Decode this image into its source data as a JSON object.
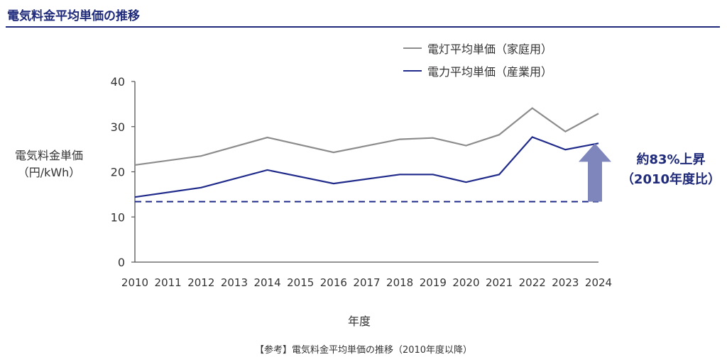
{
  "title": "電気料金平均単価の推移",
  "caption": "【参考】電気料金平均単価の推移（2010年度以降）",
  "annotation": {
    "line1": "約83%上昇",
    "line2": "（2010年度比）"
  },
  "colors": {
    "gray": "#8c8c8c",
    "navy": "#1f2a8a",
    "arrow": "#7f86bb",
    "title": "#1f2a7a"
  },
  "chart_data": {
    "type": "line",
    "title": "電気料金平均単価の推移",
    "xlabel": "年度",
    "ylabel_line1": "電気料金単価",
    "ylabel_line2": "（円/kWh）",
    "ylim": [
      0,
      40
    ],
    "yticks": [
      "0",
      "10",
      "20",
      "30",
      "40"
    ],
    "x": [
      "2010",
      "2011",
      "2012",
      "2013",
      "2014",
      "2015",
      "2016",
      "2017",
      "2018",
      "2019",
      "2020",
      "2021",
      "2022",
      "2023",
      "2024"
    ],
    "legend_position": "top-right",
    "series": [
      {
        "name": "電灯平均単価（家庭用）",
        "color": "#8c8c8c",
        "points": [
          [
            2010,
            21.5
          ],
          [
            2012,
            23.5
          ],
          [
            2014,
            27.6
          ],
          [
            2016,
            24.3
          ],
          [
            2018,
            27.2
          ],
          [
            2019,
            27.5
          ],
          [
            2020,
            25.8
          ],
          [
            2021,
            28.2
          ],
          [
            2022,
            34.1
          ],
          [
            2023,
            28.9
          ],
          [
            2024,
            32.9
          ]
        ]
      },
      {
        "name": "電力平均単価（産業用）",
        "color": "#1f2a8a",
        "points": [
          [
            2010,
            14.4
          ],
          [
            2012,
            16.5
          ],
          [
            2014,
            20.4
          ],
          [
            2016,
            17.4
          ],
          [
            2018,
            19.4
          ],
          [
            2019,
            19.4
          ],
          [
            2020,
            17.7
          ],
          [
            2021,
            19.4
          ],
          [
            2022,
            27.7
          ],
          [
            2023,
            24.9
          ],
          [
            2024,
            26.3
          ]
        ]
      }
    ],
    "reference_line": {
      "value": 13.4,
      "style": "dashed",
      "from": 2010,
      "to": 2024
    }
  }
}
